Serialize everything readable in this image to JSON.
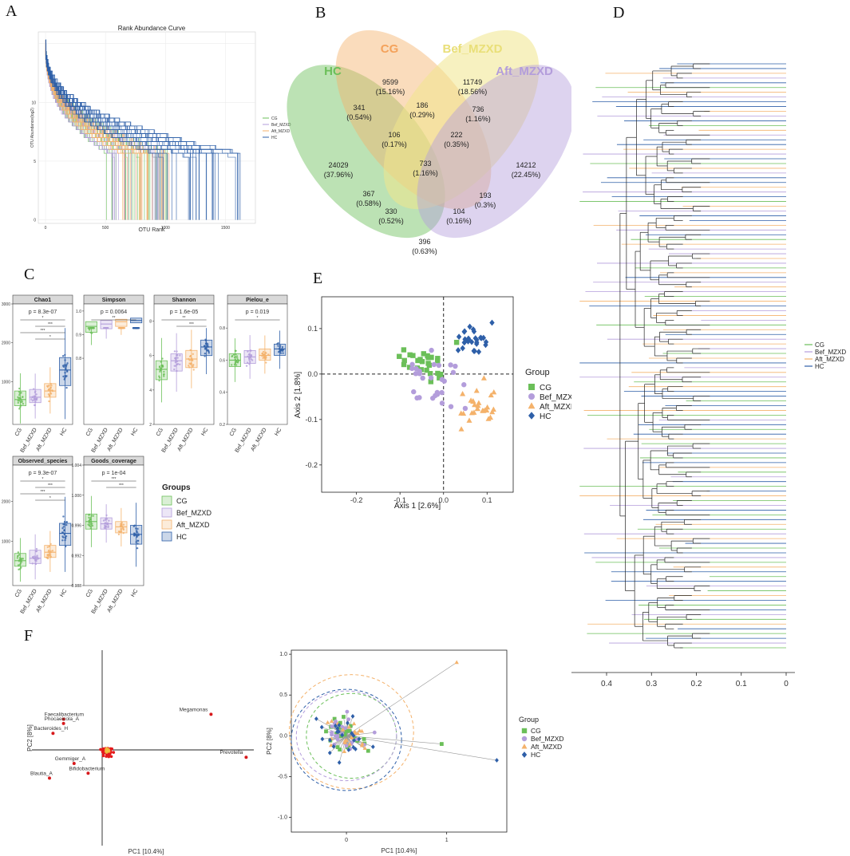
{
  "colors": {
    "CG": "#6bbf59",
    "Bef_MZXD": "#b39ddb",
    "Aft_MZXD": "#f4b26b",
    "HC": "#2e5fa8"
  },
  "groups": [
    "CG",
    "Bef_MZXD",
    "Aft_MZXD",
    "HC"
  ],
  "panels": {
    "A": "A",
    "B": "B",
    "C": "C",
    "D": "D",
    "E": "E",
    "F": "F"
  },
  "chart_data": [
    {
      "id": "A",
      "type": "line",
      "title": "Rank Abundance Curve",
      "xlabel": "OTU Rank",
      "ylabel": "OTU Abundance(log2)",
      "xticks": [
        "0",
        "500",
        "1000",
        "1500"
      ],
      "yticks": [
        "0",
        "5",
        "10"
      ],
      "xlim": [
        -60,
        1750
      ],
      "ylim": [
        -0.3,
        16
      ],
      "legend": [
        "CG",
        "Bef_MZXD",
        "Aft_MZXD",
        "HC"
      ]
    },
    {
      "id": "B",
      "type": "venn",
      "sets": [
        {
          "name": "HC",
          "color": "#6bbf59"
        },
        {
          "name": "CG",
          "color": "#f4b26b"
        },
        {
          "name": "Bef_MZXD",
          "color": "#f0e68c"
        },
        {
          "name": "Aft_MZXD",
          "color": "#b39ddb"
        }
      ],
      "regions": [
        {
          "value": "24029",
          "pct": "(37.96%)"
        },
        {
          "value": "9599",
          "pct": "(15.16%)"
        },
        {
          "value": "11749",
          "pct": "(18.56%)"
        },
        {
          "value": "14212",
          "pct": "(22.45%)"
        },
        {
          "value": "341",
          "pct": "(0.54%)"
        },
        {
          "value": "186",
          "pct": "(0.29%)"
        },
        {
          "value": "736",
          "pct": "(1.16%)"
        },
        {
          "value": "106",
          "pct": "(0.17%)"
        },
        {
          "value": "222",
          "pct": "(0.35%)"
        },
        {
          "value": "733",
          "pct": "(1.16%)"
        },
        {
          "value": "367",
          "pct": "(0.58%)"
        },
        {
          "value": "193",
          "pct": "(0.3%)"
        },
        {
          "value": "330",
          "pct": "(0.52%)"
        },
        {
          "value": "104",
          "pct": "(0.16%)"
        },
        {
          "value": "396",
          "pct": "(0.63%)"
        }
      ]
    },
    {
      "id": "C",
      "type": "box",
      "legend_title": "Groups",
      "categories": [
        "CG",
        "Bef_MZXD",
        "Aft_MZXD",
        "HC"
      ],
      "facets": [
        {
          "title": "Chao1",
          "p": "p = 8.3e-07",
          "yticks": [
            "1000",
            "2000",
            "3000"
          ],
          "ylim": [
            -100,
            3000
          ],
          "medians": [
            540,
            600,
            760,
            1300
          ],
          "q1": [
            380,
            460,
            600,
            900
          ],
          "q3": [
            760,
            800,
            950,
            1620
          ],
          "sig": [
            "*",
            "***",
            "***",
            "*"
          ]
        },
        {
          "title": "Simpson",
          "p": "p = 0.0064",
          "yticks": [
            "0.8",
            "0.9",
            "1.0"
          ],
          "ylim": [
            0.52,
            1.03
          ],
          "medians": [
            0.935,
            0.945,
            0.955,
            0.96
          ],
          "q1": [
            0.91,
            0.925,
            0.935,
            0.95
          ],
          "q3": [
            0.955,
            0.96,
            0.965,
            0.97
          ],
          "sig": [
            "**"
          ]
        },
        {
          "title": "Shannon",
          "p": "p = 1.6e-05",
          "yticks": [
            "2",
            "4",
            "6",
            "8"
          ],
          "ylim": [
            2.0,
            9.0
          ],
          "medians": [
            5.2,
            5.7,
            5.8,
            6.5
          ],
          "q1": [
            4.6,
            5.1,
            5.3,
            6.0
          ],
          "q3": [
            5.7,
            6.1,
            6.3,
            6.9
          ],
          "sig": [
            "**",
            "***"
          ]
        },
        {
          "title": "Pielou_e",
          "p": "p = 0.019",
          "yticks": [
            "0.2",
            "0.4",
            "0.6",
            "0.8"
          ],
          "ylim": [
            0.2,
            0.95
          ],
          "medians": [
            0.6,
            0.62,
            0.63,
            0.67
          ],
          "q1": [
            0.56,
            0.58,
            0.6,
            0.63
          ],
          "q3": [
            0.64,
            0.66,
            0.67,
            0.7
          ],
          "sig": [
            "*"
          ]
        },
        {
          "title": "Observed_species",
          "p": "p = 9.3e-07",
          "yticks": [
            "1000",
            "2000"
          ],
          "ylim": [
            -100,
            2900
          ],
          "medians": [
            520,
            580,
            730,
            1200
          ],
          "q1": [
            380,
            450,
            600,
            900
          ],
          "q3": [
            700,
            780,
            900,
            1450
          ],
          "sig": [
            "*",
            "***",
            "***",
            "*"
          ]
        },
        {
          "title": "Goods_coverage",
          "p": "p = 1e-04",
          "yticks": [
            "0.988",
            "0.992",
            "0.996",
            "1.000",
            "1.004"
          ],
          "ylim": [
            0.988,
            1.004
          ],
          "medians": [
            0.9965,
            0.9962,
            0.9958,
            0.9948
          ],
          "q1": [
            0.9955,
            0.9955,
            0.995,
            0.9935
          ],
          "q3": [
            0.9975,
            0.997,
            0.9965,
            0.996
          ],
          "sig": [
            "***",
            "***"
          ]
        }
      ]
    },
    {
      "id": "E",
      "type": "scatter",
      "xlabel": "Axis 1 [2.6%]",
      "ylabel": "Axis 2 [1.8%]",
      "xlim": [
        -0.28,
        0.16
      ],
      "ylim": [
        -0.26,
        0.17
      ],
      "xticks": [
        "-0.2",
        "-0.1",
        "0.0",
        "0.1"
      ],
      "yticks": [
        "-0.2",
        "-0.1",
        "0.0",
        "0.1"
      ],
      "legend_title": "Group",
      "legend": [
        "CG",
        "Bef_MZXD",
        "Aft_MZXD",
        "HC"
      ]
    },
    {
      "id": "D",
      "type": "dendrogram",
      "xticks": [
        "0.4",
        "0.3",
        "0.2",
        "0.1",
        "0"
      ],
      "legend": [
        "CG",
        "Bef_MZXD",
        "Aft_MZXD",
        "HC"
      ]
    },
    {
      "id": "F1",
      "type": "biplot",
      "xlabel": "PC1 [10.4%]",
      "ylabel": "PC2 [8%]",
      "taxa": [
        {
          "name": "Megamonas",
          "x": 0.62,
          "y": 0.58
        },
        {
          "name": "Faecalibacterium",
          "x": -0.22,
          "y": 0.5
        },
        {
          "name": "Phocaeicola_A",
          "x": -0.22,
          "y": 0.43
        },
        {
          "name": "Bacteroides_H",
          "x": -0.28,
          "y": 0.27
        },
        {
          "name": "Gemmiger_A",
          "x": -0.16,
          "y": -0.22
        },
        {
          "name": "Bifidobacterium",
          "x": -0.08,
          "y": -0.38
        },
        {
          "name": "Blautia_A",
          "x": -0.3,
          "y": -0.46
        },
        {
          "name": "Prevotella",
          "x": 0.82,
          "y": -0.12
        }
      ]
    },
    {
      "id": "F2",
      "type": "scatter",
      "xlabel": "PC1 [10.4%]",
      "ylabel": "PC2 [8%]",
      "xlim": [
        -0.55,
        1.6
      ],
      "ylim": [
        -1.18,
        1.05
      ],
      "xticks": [
        "0",
        "1"
      ],
      "yticks": [
        "-1.0",
        "-0.5",
        "0.0",
        "0.5",
        "1.0"
      ],
      "legend_title": "Group",
      "legend": [
        "CG",
        "Bef_MZXD",
        "Aft_MZXD",
        "HC"
      ]
    }
  ]
}
